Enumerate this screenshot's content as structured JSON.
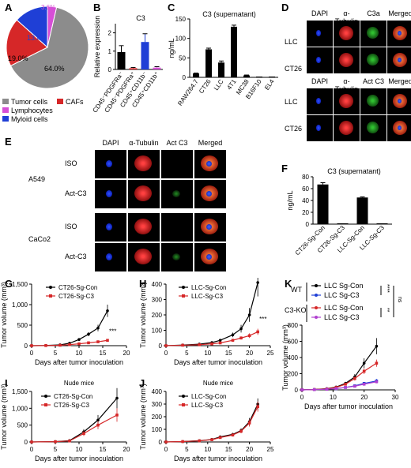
{
  "panels": {
    "A": "A",
    "B": "B",
    "C": "C",
    "D": "D",
    "E": "E",
    "F": "F",
    "G": "G",
    "H": "H",
    "I": "I",
    "J": "J",
    "K": "K"
  },
  "a": {
    "pct_large": "64.0%",
    "pct_red": "19.0%",
    "pct_blue": "13.4%",
    "pct_magenta": "3.6%",
    "legend": [
      "Tumor cells",
      "CAFs",
      "Lymphocytes",
      "Myloid cells"
    ],
    "colors": [
      "#8c8c8c",
      "#d62728",
      "#d64fd6",
      "#1f3fd6"
    ]
  },
  "b": {
    "title": "C3",
    "ylabel": "Relative expression",
    "categories": [
      "CD45⁻PDGFRa⁻",
      "CD45⁻PDGFRa⁺",
      "CD45⁺CD11b⁻",
      "CD45⁺CD11b⁺"
    ]
  },
  "c": {
    "title": "C3 (supernatant)",
    "ylabel": "ng/mL",
    "categories": [
      "RAW264.7",
      "CT26",
      "LLC",
      "4T1",
      "MC38",
      "B16F10",
      "EL4"
    ]
  },
  "d": {
    "headers1": [
      "DAPI",
      "α-Tubulin",
      "C3a",
      "Merged"
    ],
    "headers2": [
      "DAPI",
      "α-Tubulin",
      "Act C3",
      "Merged"
    ],
    "rows": [
      "LLC",
      "CT26"
    ]
  },
  "e": {
    "headers": [
      "DAPI",
      "α-Tubulin",
      "Act C3",
      "Merged"
    ],
    "groups": [
      "A549",
      "CaCo2"
    ],
    "rows": [
      "ISO",
      "Act-C3",
      "ISO",
      "Act-C3"
    ]
  },
  "f": {
    "title": "C3 (supernatant)",
    "ylabel": "ng/mL",
    "categories": [
      "CT26-Sg-Con",
      "CT26-Sg-C3",
      "LLC-Sg-Con",
      "LLC-Sg-C3"
    ]
  },
  "g": {
    "legend": [
      "CT26-Sg-Con",
      "CT26-Sg-C3"
    ],
    "stars": "***"
  },
  "h": {
    "legend": [
      "LLC-Sg-Con",
      "LLC-Sg-C3"
    ],
    "stars": "***"
  },
  "i": {
    "title": "Nude mice",
    "legend": [
      "CT26-Sg-Con",
      "CT26-Sg-C3"
    ]
  },
  "j": {
    "title": "Nude mice",
    "legend": [
      "LLC-Sg-Con",
      "LLC-Sg-C3"
    ]
  },
  "k": {
    "groups": [
      "WT",
      "C3-KO"
    ],
    "legend": [
      "LLC Sg-Con",
      "LLC Sg-C3",
      "LLC Sg-Con",
      "LLC Sg-C3"
    ],
    "sig": [
      "****",
      "**",
      "ns"
    ]
  },
  "axes": {
    "tumor_volume": "Tumor volume (mm³)",
    "days": "Days after tumor inoculation"
  },
  "chart_data": [
    {
      "id": "A",
      "type": "pie",
      "categories": [
        "Tumor cells",
        "CAFs",
        "Lymphocytes",
        "Myloid cells"
      ],
      "values": [
        64.0,
        19.0,
        3.6,
        13.4
      ]
    },
    {
      "id": "B",
      "type": "bar",
      "title": "C3",
      "ylabel": "Relative expression",
      "categories": [
        "CD45⁻PDGFRa⁻",
        "CD45⁻PDGFRa⁺",
        "CD45⁺CD11b⁻",
        "CD45⁺CD11b⁺"
      ],
      "values": [
        0.95,
        0.07,
        1.5,
        0.1
      ],
      "errors": [
        0.35,
        0.04,
        0.45,
        0.05
      ],
      "ylim": [
        0,
        2.5
      ],
      "yticks": [
        0,
        1,
        2
      ],
      "colors": [
        "#000000",
        "#d62728",
        "#1f3fd6",
        "#d64fd6"
      ]
    },
    {
      "id": "C",
      "type": "bar",
      "title": "C3 (supernatant)",
      "ylabel": "ng/mL",
      "categories": [
        "RAW264.7",
        "CT26",
        "LLC",
        "4T1",
        "MC38",
        "B16F10",
        "EL4"
      ],
      "values": [
        10,
        72,
        38,
        130,
        5,
        0,
        0
      ],
      "errors": [
        1,
        3,
        4,
        4,
        1,
        0,
        0
      ],
      "ylim": [
        0,
        150
      ],
      "yticks": [
        0,
        50,
        100,
        150
      ]
    },
    {
      "id": "F",
      "type": "bar",
      "title": "C3 (supernatant)",
      "ylabel": "ng/mL",
      "categories": [
        "CT26-Sg-Con",
        "CT26-Sg-C3",
        "LLC-Sg-Con",
        "LLC-Sg-C3"
      ],
      "values": [
        67,
        0,
        45,
        0
      ],
      "errors": [
        3,
        0,
        1,
        0
      ],
      "ylim": [
        0,
        80
      ],
      "yticks": [
        0,
        20,
        40,
        60,
        80
      ]
    },
    {
      "id": "G",
      "type": "line",
      "xlabel": "Days after tumor inoculation",
      "ylabel": "Tumor volume (mm³)",
      "xlim": [
        0,
        20
      ],
      "xticks": [
        0,
        5,
        10,
        15,
        20
      ],
      "ylim": [
        0,
        1500
      ],
      "yticks": [
        0,
        500,
        1000,
        1500
      ],
      "yticklabels": [
        "0",
        "500",
        "1,000",
        "1,500"
      ],
      "series": [
        {
          "name": "CT26-Sg-Con",
          "x": [
            0,
            3,
            6,
            8,
            10,
            12,
            14,
            16
          ],
          "y": [
            0,
            5,
            20,
            60,
            150,
            280,
            430,
            850
          ],
          "err": [
            0,
            2,
            5,
            15,
            30,
            50,
            80,
            150
          ]
        },
        {
          "name": "CT26-Sg-C3",
          "x": [
            0,
            3,
            6,
            8,
            10,
            12,
            14,
            16
          ],
          "y": [
            0,
            3,
            10,
            25,
            45,
            70,
            95,
            130
          ],
          "err": [
            0,
            1,
            3,
            6,
            10,
            15,
            20,
            25
          ]
        }
      ]
    },
    {
      "id": "H",
      "type": "line",
      "xlabel": "Days after tumor inoculation",
      "ylabel": "Tumor volume (mm³)",
      "xlim": [
        0,
        25
      ],
      "xticks": [
        0,
        5,
        10,
        15,
        20,
        25
      ],
      "ylim": [
        0,
        400
      ],
      "yticks": [
        0,
        100,
        200,
        300,
        400
      ],
      "series": [
        {
          "name": "LLC-Sg-Con",
          "x": [
            0,
            4,
            8,
            11,
            13,
            16,
            18,
            20,
            22
          ],
          "y": [
            0,
            4,
            10,
            20,
            35,
            70,
            110,
            200,
            410
          ],
          "err": [
            0,
            1,
            3,
            5,
            8,
            15,
            25,
            45,
            90
          ]
        },
        {
          "name": "LLC-Sg-C3",
          "x": [
            0,
            4,
            8,
            11,
            13,
            16,
            18,
            20,
            22
          ],
          "y": [
            0,
            3,
            6,
            12,
            18,
            35,
            50,
            65,
            90
          ],
          "err": [
            0,
            1,
            2,
            3,
            5,
            8,
            10,
            15,
            20
          ]
        }
      ]
    },
    {
      "id": "I",
      "type": "line",
      "title": "Nude mice",
      "xlabel": "Days after tumor inoculation",
      "ylabel": "Tumor volume (mm³)",
      "xlim": [
        0,
        20
      ],
      "xticks": [
        0,
        5,
        10,
        15,
        20
      ],
      "ylim": [
        0,
        1500
      ],
      "yticks": [
        0,
        500,
        1000,
        1500
      ],
      "yticklabels": [
        "0",
        "500",
        "1,000",
        "1,500"
      ],
      "series": [
        {
          "name": "CT26-Sg-Con",
          "x": [
            0,
            5,
            8,
            11,
            14,
            18
          ],
          "y": [
            0,
            10,
            40,
            300,
            650,
            1300
          ],
          "err": [
            0,
            3,
            10,
            80,
            150,
            300
          ]
        },
        {
          "name": "CT26-Sg-C3",
          "x": [
            0,
            5,
            8,
            11,
            14,
            18
          ],
          "y": [
            0,
            8,
            30,
            250,
            500,
            800
          ],
          "err": [
            0,
            3,
            8,
            70,
            120,
            200
          ]
        }
      ]
    },
    {
      "id": "J",
      "type": "line",
      "title": "Nude mice",
      "xlabel": "Days after tumor inoculation",
      "ylabel": "Tumor volume (mm³)",
      "xlim": [
        0,
        25
      ],
      "xticks": [
        0,
        5,
        10,
        15,
        20,
        25
      ],
      "ylim": [
        0,
        400
      ],
      "yticks": [
        0,
        100,
        200,
        300,
        400
      ],
      "series": [
        {
          "name": "LLC-Sg-Con",
          "x": [
            0,
            4,
            8,
            11,
            13,
            16,
            18,
            20,
            22
          ],
          "y": [
            0,
            3,
            10,
            20,
            40,
            60,
            90,
            160,
            300
          ],
          "err": [
            0,
            1,
            3,
            5,
            8,
            12,
            18,
            30,
            45
          ]
        },
        {
          "name": "LLC-Sg-C3",
          "x": [
            0,
            4,
            8,
            11,
            13,
            16,
            18,
            20,
            22
          ],
          "y": [
            0,
            3,
            9,
            18,
            35,
            55,
            85,
            150,
            280
          ],
          "err": [
            0,
            1,
            3,
            5,
            8,
            12,
            16,
            28,
            40
          ]
        }
      ]
    },
    {
      "id": "K",
      "type": "line",
      "xlabel": "Days after tumor inoculation",
      "ylabel": "Tumor volume (mm³)",
      "xlim": [
        0,
        30
      ],
      "xticks": [
        0,
        10,
        20,
        30
      ],
      "ylim": [
        0,
        800
      ],
      "yticks": [
        0,
        200,
        400,
        600,
        800
      ],
      "series": [
        {
          "name": "LLC Sg-Con",
          "group": "WT",
          "color": "#000000",
          "x": [
            0,
            4,
            8,
            11,
            14,
            17,
            20,
            24
          ],
          "y": [
            0,
            5,
            15,
            35,
            80,
            160,
            330,
            540
          ],
          "err": [
            0,
            2,
            5,
            10,
            20,
            35,
            60,
            100
          ]
        },
        {
          "name": "LLC Sg-C3",
          "group": "WT",
          "color": "#1f3fd6",
          "x": [
            0,
            4,
            8,
            11,
            14,
            17,
            20,
            24
          ],
          "y": [
            0,
            3,
            8,
            15,
            30,
            50,
            80,
            110
          ],
          "err": [
            0,
            1,
            3,
            5,
            8,
            12,
            18,
            25
          ]
        },
        {
          "name": "LLC Sg-Con",
          "group": "C3-KO",
          "color": "#d62728",
          "x": [
            0,
            4,
            8,
            11,
            14,
            17,
            20,
            24
          ],
          "y": [
            0,
            4,
            12,
            30,
            70,
            140,
            230,
            330
          ],
          "err": [
            0,
            2,
            4,
            8,
            15,
            25,
            35,
            45
          ]
        },
        {
          "name": "LLC Sg-C3",
          "group": "C3-KO",
          "color": "#b040d0",
          "x": [
            0,
            4,
            8,
            11,
            14,
            17,
            20,
            24
          ],
          "y": [
            0,
            3,
            8,
            16,
            30,
            45,
            70,
            100
          ],
          "err": [
            0,
            1,
            3,
            4,
            7,
            10,
            14,
            18
          ]
        }
      ]
    }
  ]
}
